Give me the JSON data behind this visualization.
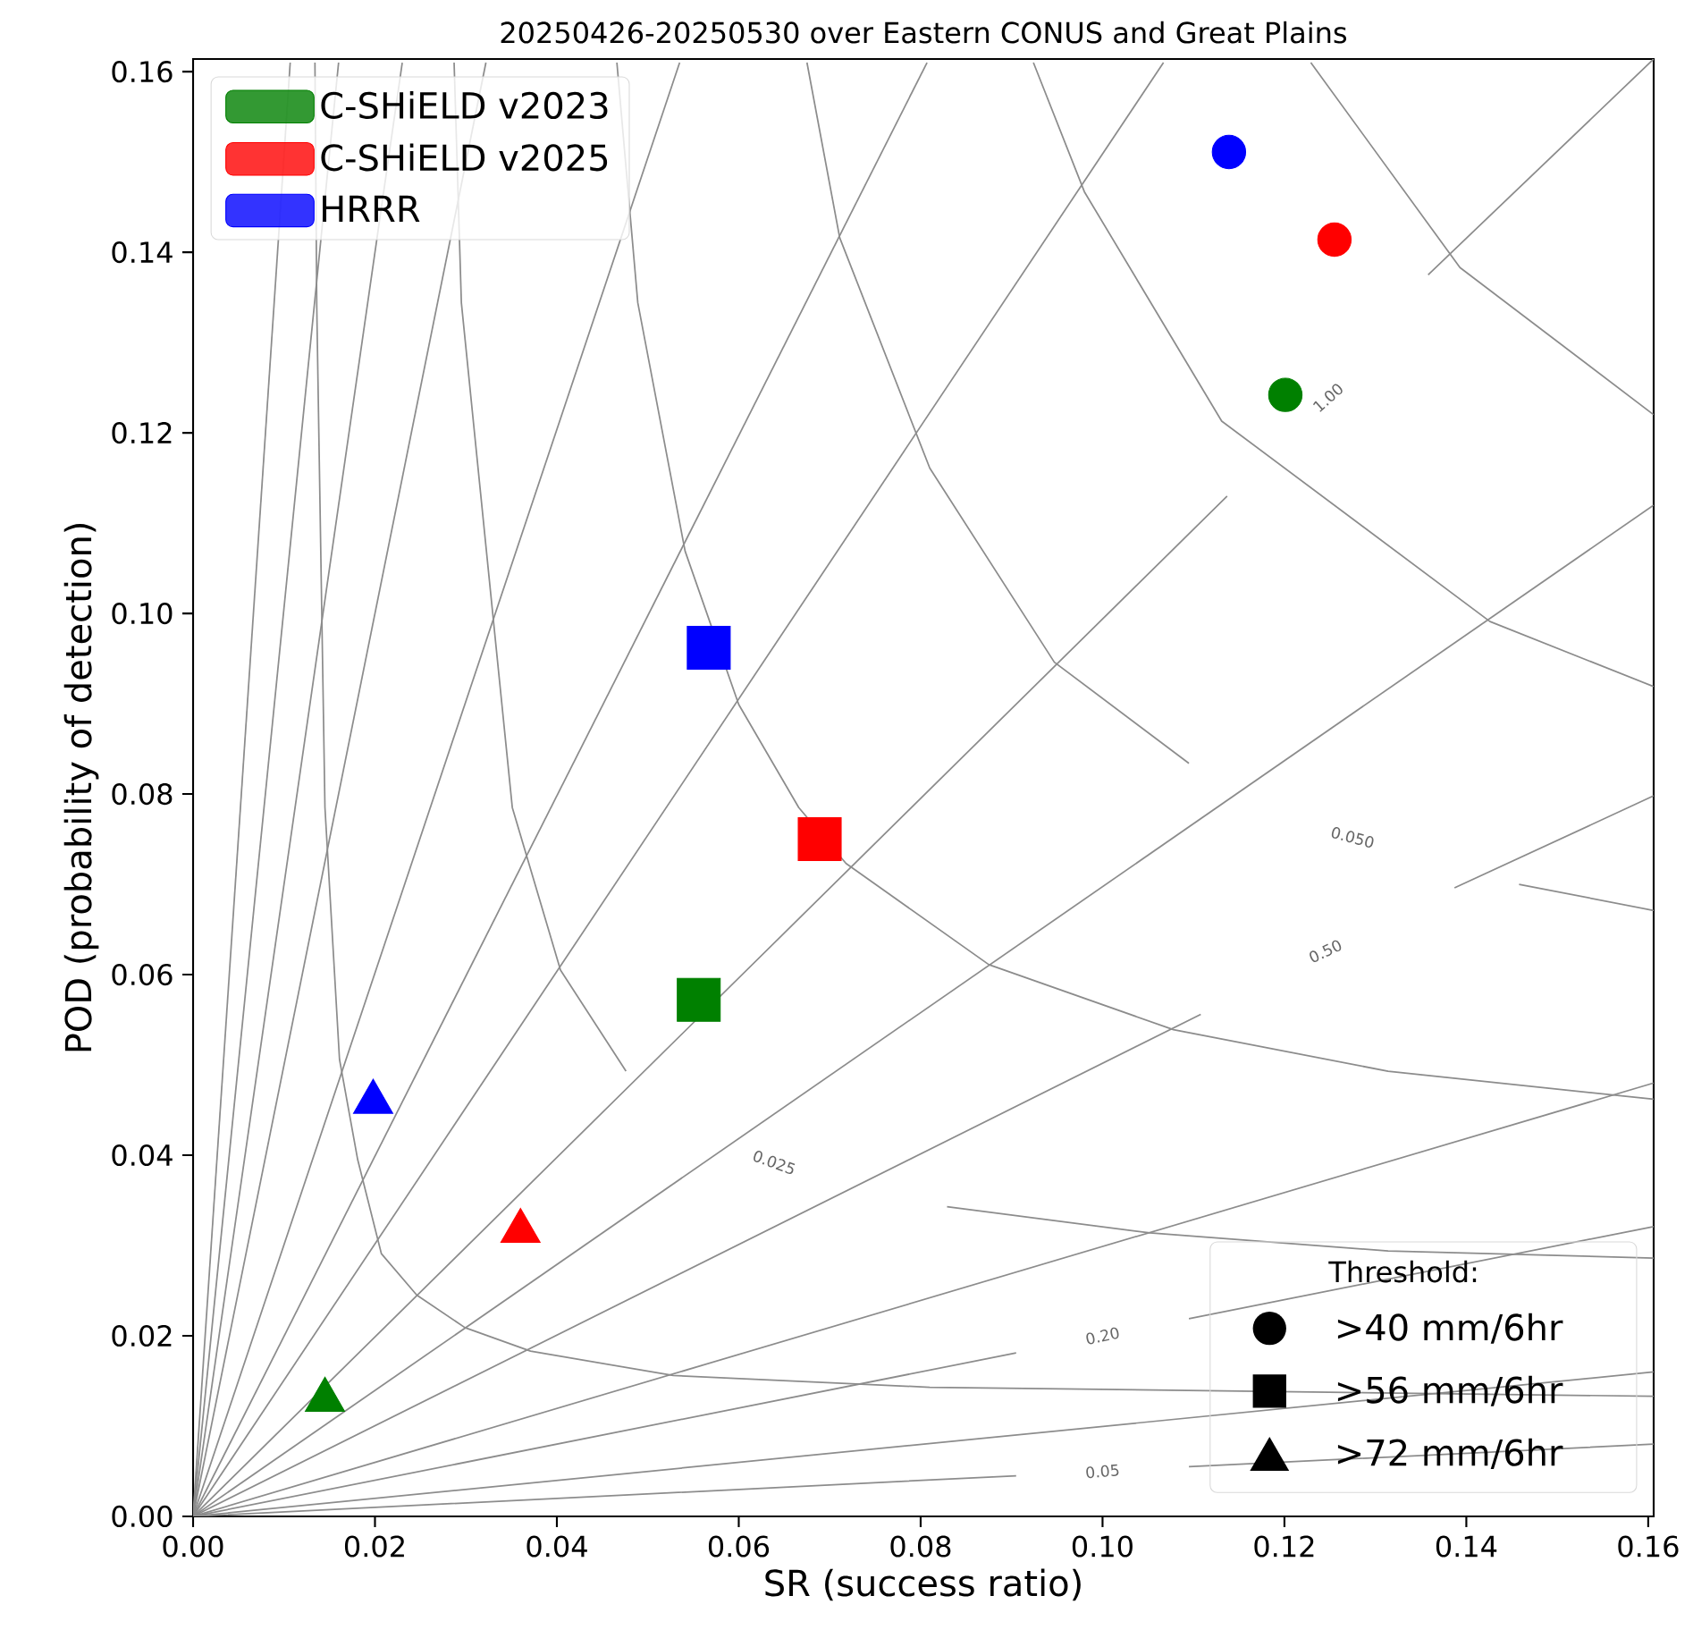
{
  "chart_data": {
    "type": "line",
    "title": "20250426-20250530 over Eastern CONUS and Great Plains",
    "xlabel": "SR (success ratio)",
    "ylabel": "POD (probability of detection)",
    "legend": "top left",
    "legend_title": "Threshold:",
    "marker": [
      "circle",
      "square",
      "triangle"
    ],
    "xlim": [
      0,
      0.1606
    ],
    "ylim": [
      0,
      0.1614
    ],
    "xticks": [
      {
        "value": 0,
        "label": "0.00"
      },
      {
        "value": 0.02,
        "label": "0.02"
      },
      {
        "value": 0.04,
        "label": "0.04"
      },
      {
        "value": 0.06,
        "label": "0.06"
      },
      {
        "value": 0.08,
        "label": "0.08"
      },
      {
        "value": 0.1,
        "label": "0.10"
      },
      {
        "value": 0.12,
        "label": "0.12"
      },
      {
        "value": 0.14,
        "label": "0.14"
      },
      {
        "value": 0.16,
        "label": "0.16"
      }
    ],
    "yticks": [
      {
        "value": 0,
        "label": "0.00"
      },
      {
        "value": 0.02,
        "label": "0.02"
      },
      {
        "value": 0.04,
        "label": "0.04"
      },
      {
        "value": 0.06,
        "label": "0.06"
      },
      {
        "value": 0.08,
        "label": "0.08"
      },
      {
        "value": 0.1,
        "label": "0.10"
      },
      {
        "value": 0.12,
        "label": "0.12"
      },
      {
        "value": 0.14,
        "label": "0.14"
      },
      {
        "value": 0.16,
        "label": "0.16"
      }
    ],
    "annotations": [
      "1.00",
      "0.050",
      "0.50",
      "0.025",
      "0.20",
      "0.05",
      ">40 mm/6hr",
      ">56 mm/6hr",
      ">72 mm/6hr"
    ],
    "series": [
      {
        "color": "#8c8c8c",
        "x": [
          0,
          0.1137,
          0.1248,
          0.1358,
          0.1606
        ],
        "values": [
          0,
          0.113,
          null,
          0.1375,
          0.1614
        ]
      },
      {
        "color": "#8c8c8c",
        "x": [
          0,
          0.1067
        ],
        "values": [
          0,
          0.161
        ]
      },
      {
        "color": "#8c8c8c",
        "x": [
          0,
          0.0807
        ],
        "values": [
          0,
          0.161
        ]
      },
      {
        "color": "#8c8c8c",
        "x": [
          0,
          0.0535
        ],
        "values": [
          0,
          0.161
        ]
      },
      {
        "color": "#8c8c8c",
        "x": [
          0,
          0.0322
        ],
        "values": [
          0,
          0.161
        ]
      },
      {
        "color": "#8c8c8c",
        "x": [
          0,
          0.023
        ],
        "values": [
          0,
          0.161
        ]
      },
      {
        "color": "#8c8c8c",
        "x": [
          0,
          0.016
        ],
        "values": [
          0,
          0.161
        ]
      },
      {
        "color": "#8c8c8c",
        "x": [
          0,
          0.01068
        ],
        "values": [
          0,
          0.161
        ]
      },
      {
        "color": "#8c8c8c",
        "x": [
          0,
          0.1606
        ],
        "values": [
          0,
          0.112
        ]
      },
      {
        "color": "#8c8c8c",
        "x": [
          0,
          0.1108,
          0.1245,
          0.1387,
          0.1606
        ],
        "values": [
          0,
          0.0556,
          null,
          0.0696,
          0.0798
        ]
      },
      {
        "color": "#8c8c8c",
        "x": [
          0,
          0.1606
        ],
        "values": [
          0,
          0.048
        ]
      },
      {
        "color": "#8c8c8c",
        "x": [
          0,
          0.0905,
          0.1,
          0.1095,
          0.1606
        ],
        "values": [
          0,
          0.0181,
          null,
          0.0219,
          0.0321
        ]
      },
      {
        "color": "#8c8c8c",
        "x": [
          0,
          0.1606
        ],
        "values": [
          0,
          0.016
        ]
      },
      {
        "color": "#8c8c8c",
        "x": [
          0,
          0.0905,
          0.1,
          0.1095,
          0.1606
        ],
        "values": [
          0,
          0.0045,
          null,
          0.0055,
          0.008
        ]
      },
      {
        "color": "#8c8c8c",
        "x": [
          0.0134,
          0.0136,
          0.0145,
          0.0161,
          0.0181,
          0.0207,
          0.0246,
          0.0299,
          0.0371,
          0.0528,
          0.081,
          0.1606
        ],
        "values": [
          0.161,
          0.134,
          0.0785,
          0.0506,
          0.0395,
          0.0291,
          0.0245,
          0.0209,
          0.0183,
          0.0156,
          0.0143,
          0.0133
        ]
      },
      {
        "color": "#8c8c8c",
        "x": [
          0.0287,
          0.0295,
          0.0351,
          0.0404,
          0.0476,
          0.0639,
          0.0829,
          0.1052,
          0.1314,
          0.1606
        ],
        "values": [
          0.161,
          0.1344,
          0.0785,
          0.0605,
          0.0493,
          null,
          0.0343,
          0.0314,
          0.0294,
          0.0286
        ]
      },
      {
        "color": "#8c8c8c",
        "x": [
          0.0466,
          0.0489,
          0.0541,
          0.06,
          0.0666,
          0.0718,
          0.0875,
          0.1078,
          0.1314,
          0.1606
        ],
        "values": [
          0.161,
          0.1344,
          0.1069,
          0.0899,
          0.0785,
          0.0723,
          0.0611,
          0.0539,
          0.0493,
          0.0462
        ]
      },
      {
        "color": "#8c8c8c",
        "x": [
          0.0675,
          0.0711,
          0.081,
          0.0947,
          0.1095,
          0.1275,
          0.1458,
          0.1606
        ],
        "values": [
          0.161,
          0.1416,
          0.1161,
          0.0946,
          0.0834,
          null,
          0.07,
          0.0671
        ]
      },
      {
        "color": "#8c8c8c",
        "x": [
          0.0924,
          0.098,
          0.1131,
          0.1426,
          0.1606
        ],
        "values": [
          0.161,
          0.1467,
          0.1213,
          0.0991,
          0.0919
        ]
      },
      {
        "color": "#8c8c8c",
        "x": [
          0.1229,
          0.1393,
          0.1606
        ],
        "values": [
          0.161,
          0.1383,
          0.122
        ]
      },
      {
        "type": "scatter",
        "name": "C-SHiELD v2023",
        "color": "#008000",
        "x": [
          0.1201,
          0.0556,
          0.0145
        ],
        "values": [
          0.1242,
          0.0572,
          0.0129
        ]
      },
      {
        "type": "scatter",
        "name": "C-SHiELD v2025",
        "color": "#ff0000",
        "x": [
          0.1255,
          0.0689,
          0.036
        ],
        "values": [
          0.1414,
          0.075,
          0.0316
        ]
      },
      {
        "type": "scatter",
        "name": "HRRR",
        "color": "#0000ff",
        "x": [
          0.1139,
          0.0567,
          0.0198
        ],
        "values": [
          0.1511,
          0.0962,
          0.0459
        ]
      }
    ]
  }
}
